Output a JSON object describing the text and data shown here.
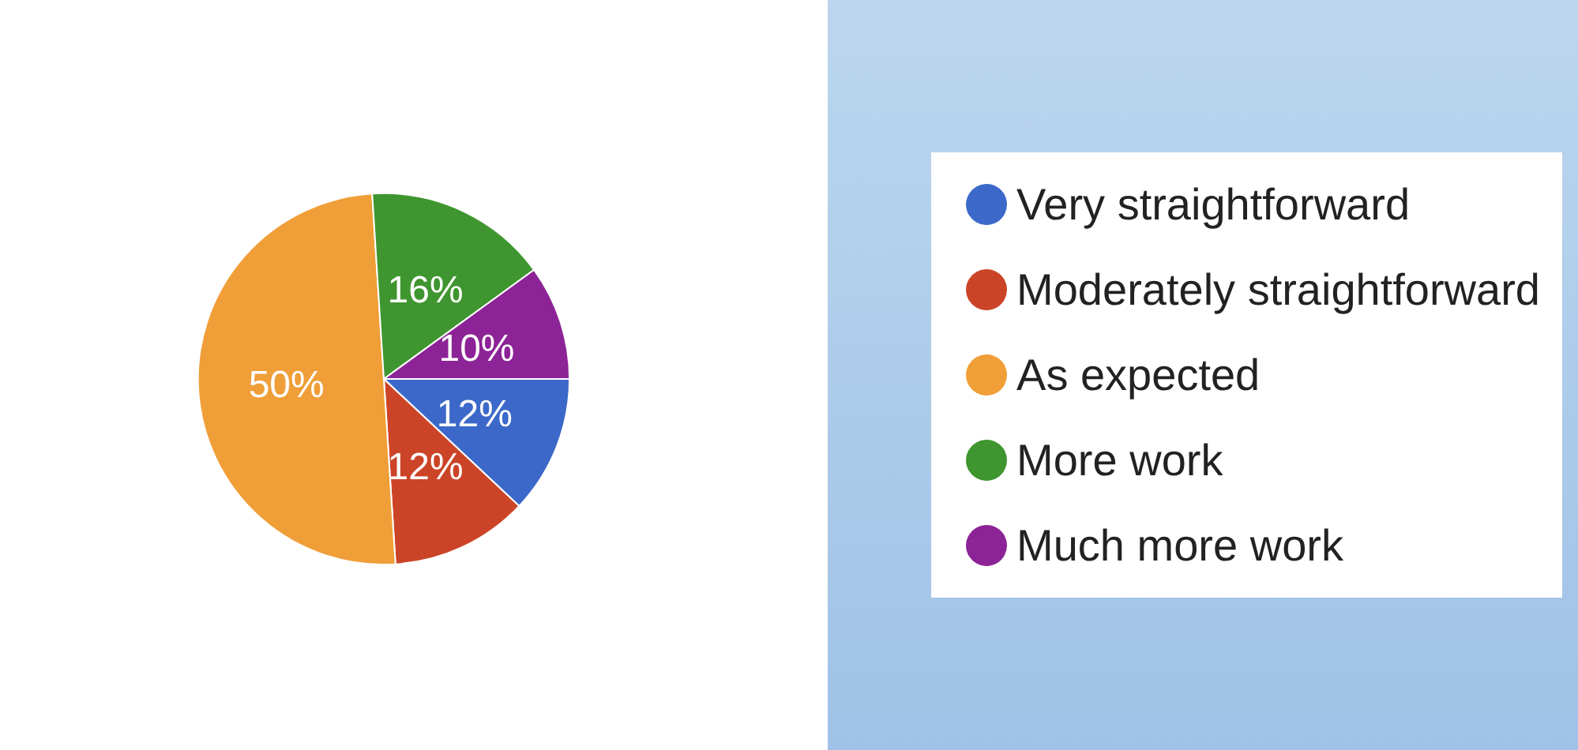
{
  "chart_data": {
    "type": "pie",
    "categories": [
      "Very straightforward",
      "Moderately straightforward",
      "As expected",
      "More work",
      "Much more work"
    ],
    "values": [
      12,
      12,
      50,
      16,
      10
    ],
    "value_labels": [
      "12%",
      "12%",
      "50%",
      "16%",
      "10%"
    ],
    "colors": [
      "#3c69c9",
      "#cc4427",
      "#f09e38",
      "#3f952f",
      "#8c2396"
    ],
    "legend": "right"
  }
}
